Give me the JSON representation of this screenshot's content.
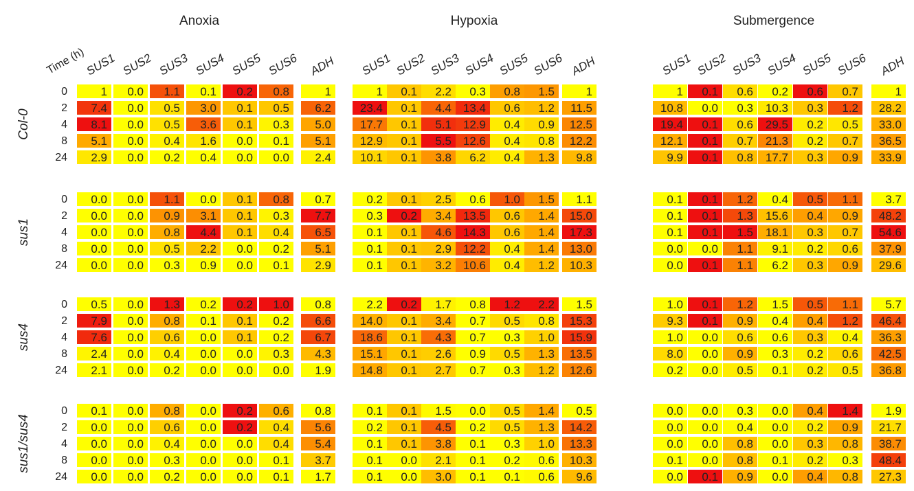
{
  "chart_data": {
    "type": "heatmap",
    "time_header": "Time (h)",
    "time_points": [
      "0",
      "2",
      "4",
      "8",
      "24"
    ],
    "genes": [
      "SUS1",
      "SUS2",
      "SUS3",
      "SUS4",
      "SUS5",
      "SUS6",
      "ADH"
    ],
    "colors": {
      "low": "#ffff00",
      "mid": "#ffa500",
      "high": "#ee1010"
    },
    "conditions": [
      {
        "title": "Anoxia",
        "groups": [
          {
            "name": "Col-0",
            "rows": [
              [
                "1",
                "0.0",
                "1.1",
                "0.1",
                "0.2",
                "0.8",
                "1"
              ],
              [
                "7.4",
                "0.0",
                "0.5",
                "3.0",
                "0.1",
                "0.5",
                "6.2"
              ],
              [
                "8.1",
                "0.0",
                "0.5",
                "3.6",
                "0.1",
                "0.3",
                "5.0"
              ],
              [
                "5.1",
                "0.0",
                "0.4",
                "1.6",
                "0.0",
                "0.1",
                "5.1"
              ],
              [
                "2.9",
                "0.0",
                "0.2",
                "0.4",
                "0.0",
                "0.0",
                "2.4"
              ]
            ]
          },
          {
            "name": "sus1",
            "rows": [
              [
                "0.0",
                "0.0",
                "1.1",
                "0.0",
                "0.1",
                "0.8",
                "0.7"
              ],
              [
                "0.0",
                "0.0",
                "0.9",
                "3.1",
                "0.1",
                "0.3",
                "7.7"
              ],
              [
                "0.0",
                "0.0",
                "0.8",
                "4.4",
                "0.1",
                "0.4",
                "6.5"
              ],
              [
                "0.0",
                "0.0",
                "0.5",
                "2.2",
                "0.0",
                "0.2",
                "5.1"
              ],
              [
                "0.0",
                "0.0",
                "0.3",
                "0.9",
                "0.0",
                "0.1",
                "2.9"
              ]
            ]
          },
          {
            "name": "sus4",
            "rows": [
              [
                "0.5",
                "0.0",
                "1.3",
                "0.2",
                "0.2",
                "1.0",
                "0.8"
              ],
              [
                "7.9",
                "0.0",
                "0.8",
                "0.1",
                "0.1",
                "0.2",
                "6.6"
              ],
              [
                "7.6",
                "0.0",
                "0.6",
                "0.0",
                "0.1",
                "0.2",
                "6.7"
              ],
              [
                "2.4",
                "0.0",
                "0.4",
                "0.0",
                "0.0",
                "0.3",
                "4.3"
              ],
              [
                "2.1",
                "0.0",
                "0.2",
                "0.0",
                "0.0",
                "0.0",
                "1.9"
              ]
            ]
          },
          {
            "name": "sus1/sus4",
            "rows": [
              [
                "0.1",
                "0.0",
                "0.8",
                "0.0",
                "0.2",
                "0.6",
                "0.8"
              ],
              [
                "0.0",
                "0.0",
                "0.6",
                "0.0",
                "0.2",
                "0.4",
                "5.6"
              ],
              [
                "0.0",
                "0.0",
                "0.4",
                "0.0",
                "0.0",
                "0.4",
                "5.4"
              ],
              [
                "0.0",
                "0.0",
                "0.3",
                "0.0",
                "0.0",
                "0.1",
                "3.7"
              ],
              [
                "0.0",
                "0.0",
                "0.2",
                "0.0",
                "0.0",
                "0.1",
                "1.7"
              ]
            ]
          }
        ]
      },
      {
        "title": "Hypoxia",
        "groups": [
          {
            "name": "Col-0",
            "rows": [
              [
                "1",
                "0.1",
                "2.2",
                "0.3",
                "0.8",
                "1.5",
                "1"
              ],
              [
                "23.4",
                "0.1",
                "4.4",
                "13.4",
                "0.6",
                "1.2",
                "11.5"
              ],
              [
                "17.7",
                "0.1",
                "5.1",
                "12.9",
                "0.4",
                "0.9",
                "12.5"
              ],
              [
                "12.9",
                "0.1",
                "5.5",
                "12.6",
                "0.4",
                "0.8",
                "12.2"
              ],
              [
                "10.1",
                "0.1",
                "3.8",
                "6.2",
                "0.4",
                "1.3",
                "9.8"
              ]
            ]
          },
          {
            "name": "sus1",
            "rows": [
              [
                "0.2",
                "0.1",
                "2.5",
                "0.6",
                "1.0",
                "1.5",
                "1.1"
              ],
              [
                "0.3",
                "0.2",
                "3.4",
                "13.5",
                "0.6",
                "1.4",
                "15.0"
              ],
              [
                "0.1",
                "0.1",
                "4.6",
                "14.3",
                "0.6",
                "1.4",
                "17.3"
              ],
              [
                "0.1",
                "0.1",
                "2.9",
                "12.2",
                "0.4",
                "1.4",
                "13.0"
              ],
              [
                "0.1",
                "0.1",
                "3.2",
                "10.6",
                "0.4",
                "1.2",
                "10.3"
              ]
            ]
          },
          {
            "name": "sus4",
            "rows": [
              [
                "2.2",
                "0.2",
                "1.7",
                "0.8",
                "1.2",
                "2.2",
                "1.5"
              ],
              [
                "14.0",
                "0.1",
                "3.4",
                "0.7",
                "0.5",
                "0.8",
                "15.3"
              ],
              [
                "18.6",
                "0.1",
                "4.3",
                "0.7",
                "0.3",
                "1.0",
                "15.9"
              ],
              [
                "15.1",
                "0.1",
                "2.6",
                "0.9",
                "0.5",
                "1.3",
                "13.5"
              ],
              [
                "14.8",
                "0.1",
                "2.7",
                "0.7",
                "0.3",
                "1.2",
                "12.6"
              ]
            ]
          },
          {
            "name": "sus1/sus4",
            "rows": [
              [
                "0.1",
                "0.1",
                "1.5",
                "0.0",
                "0.5",
                "1.4",
                "0.5"
              ],
              [
                "0.2",
                "0.1",
                "4.5",
                "0.2",
                "0.5",
                "1.3",
                "14.2"
              ],
              [
                "0.1",
                "0.1",
                "3.8",
                "0.1",
                "0.3",
                "1.0",
                "13.3"
              ],
              [
                "0.1",
                "0.0",
                "2.1",
                "0.1",
                "0.2",
                "0.6",
                "10.3"
              ],
              [
                "0.1",
                "0.0",
                "3.0",
                "0.1",
                "0.1",
                "0.6",
                "9.6"
              ]
            ]
          }
        ]
      },
      {
        "title": "Submergence",
        "groups": [
          {
            "name": "Col-0",
            "rows": [
              [
                "1",
                "0.1",
                "0.6",
                "0.2",
                "0.6",
                "0.7",
                "1"
              ],
              [
                "10.8",
                "0.0",
                "0.3",
                "10.3",
                "0.3",
                "1.2",
                "28.2"
              ],
              [
                "19.4",
                "0.1",
                "0.6",
                "29.5",
                "0.2",
                "0.5",
                "33.0"
              ],
              [
                "12.1",
                "0.1",
                "0.7",
                "21.3",
                "0.2",
                "0.7",
                "36.5"
              ],
              [
                "9.9",
                "0.1",
                "0.8",
                "17.7",
                "0.3",
                "0.9",
                "33.9"
              ]
            ]
          },
          {
            "name": "sus1",
            "rows": [
              [
                "0.1",
                "0.1",
                "1.2",
                "0.4",
                "0.5",
                "1.1",
                "3.7"
              ],
              [
                "0.1",
                "0.1",
                "1.3",
                "15.6",
                "0.4",
                "0.9",
                "48.2"
              ],
              [
                "0.1",
                "0.1",
                "1.5",
                "18.1",
                "0.3",
                "0.7",
                "54.6"
              ],
              [
                "0.0",
                "0.0",
                "1.1",
                "9.1",
                "0.2",
                "0.6",
                "37.9"
              ],
              [
                "0.0",
                "0.1",
                "1.1",
                "6.2",
                "0.3",
                "0.9",
                "29.6"
              ]
            ]
          },
          {
            "name": "sus4",
            "rows": [
              [
                "1.0",
                "0.1",
                "1.2",
                "1.5",
                "0.5",
                "1.1",
                "5.7"
              ],
              [
                "9.3",
                "0.1",
                "0.9",
                "0.4",
                "0.4",
                "1.2",
                "46.4"
              ],
              [
                "1.0",
                "0.0",
                "0.6",
                "0.6",
                "0.3",
                "0.4",
                "36.3"
              ],
              [
                "8.0",
                "0.0",
                "0.9",
                "0.3",
                "0.2",
                "0.6",
                "42.5"
              ],
              [
                "0.2",
                "0.0",
                "0.5",
                "0.1",
                "0.2",
                "0.5",
                "36.8"
              ]
            ]
          },
          {
            "name": "sus1/sus4",
            "rows": [
              [
                "0.0",
                "0.0",
                "0.3",
                "0.0",
                "0.4",
                "1.4",
                "1.9"
              ],
              [
                "0.0",
                "0.0",
                "0.4",
                "0.0",
                "0.2",
                "0.9",
                "21.7"
              ],
              [
                "0.0",
                "0.0",
                "0.8",
                "0.0",
                "0.3",
                "0.8",
                "38.7"
              ],
              [
                "0.1",
                "0.0",
                "0.8",
                "0.1",
                "0.2",
                "0.3",
                "48.4"
              ],
              [
                "0.0",
                "0.1",
                "0.9",
                "0.0",
                "0.4",
                "0.8",
                "27.3"
              ]
            ]
          }
        ]
      }
    ]
  }
}
